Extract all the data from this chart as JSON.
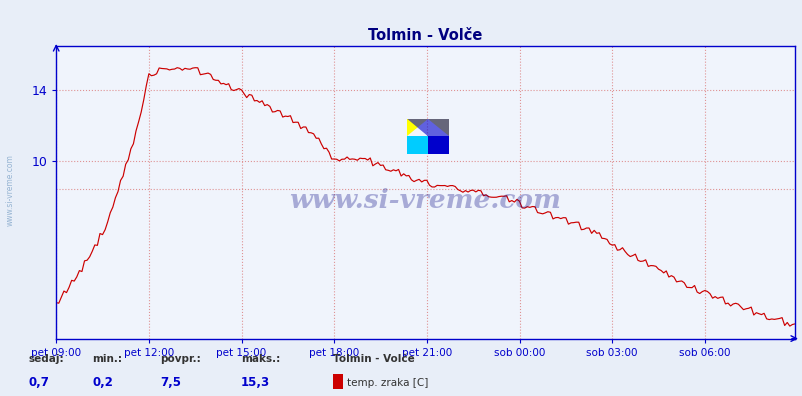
{
  "title": "Tolmin - Volče",
  "title_color": "#000080",
  "bg_color": "#e8eef8",
  "plot_bg_color": "#f0f4fc",
  "line_color": "#cc0000",
  "axis_color": "#0000cc",
  "grid_color": "#dd8888",
  "watermark_text": "www.si-vreme.com",
  "watermark_color": "#000080",
  "yticks": [
    10,
    14
  ],
  "ylim": [
    0,
    16.5
  ],
  "xlim_max": 287,
  "xtick_labels": [
    "pet 09:00",
    "pet 12:00",
    "pet 15:00",
    "pet 18:00",
    "pet 21:00",
    "sob 00:00",
    "sob 03:00",
    "sob 06:00"
  ],
  "xtick_positions": [
    0,
    36,
    72,
    108,
    144,
    180,
    216,
    252
  ],
  "hline_y": 8.4,
  "legend_items": [
    {
      "label": "sedaj:",
      "value": "0,7"
    },
    {
      "label": "min.:",
      "value": "0,2"
    },
    {
      "label": "povpr.:",
      "value": "7,5"
    },
    {
      "label": "maks.:",
      "value": "15,3"
    }
  ],
  "series_label": "Tolmin - Volče",
  "series_sublabel": "temp. zraka [C]",
  "series_color": "#cc0000",
  "label_color": "#333333",
  "value_color": "#0000cc"
}
